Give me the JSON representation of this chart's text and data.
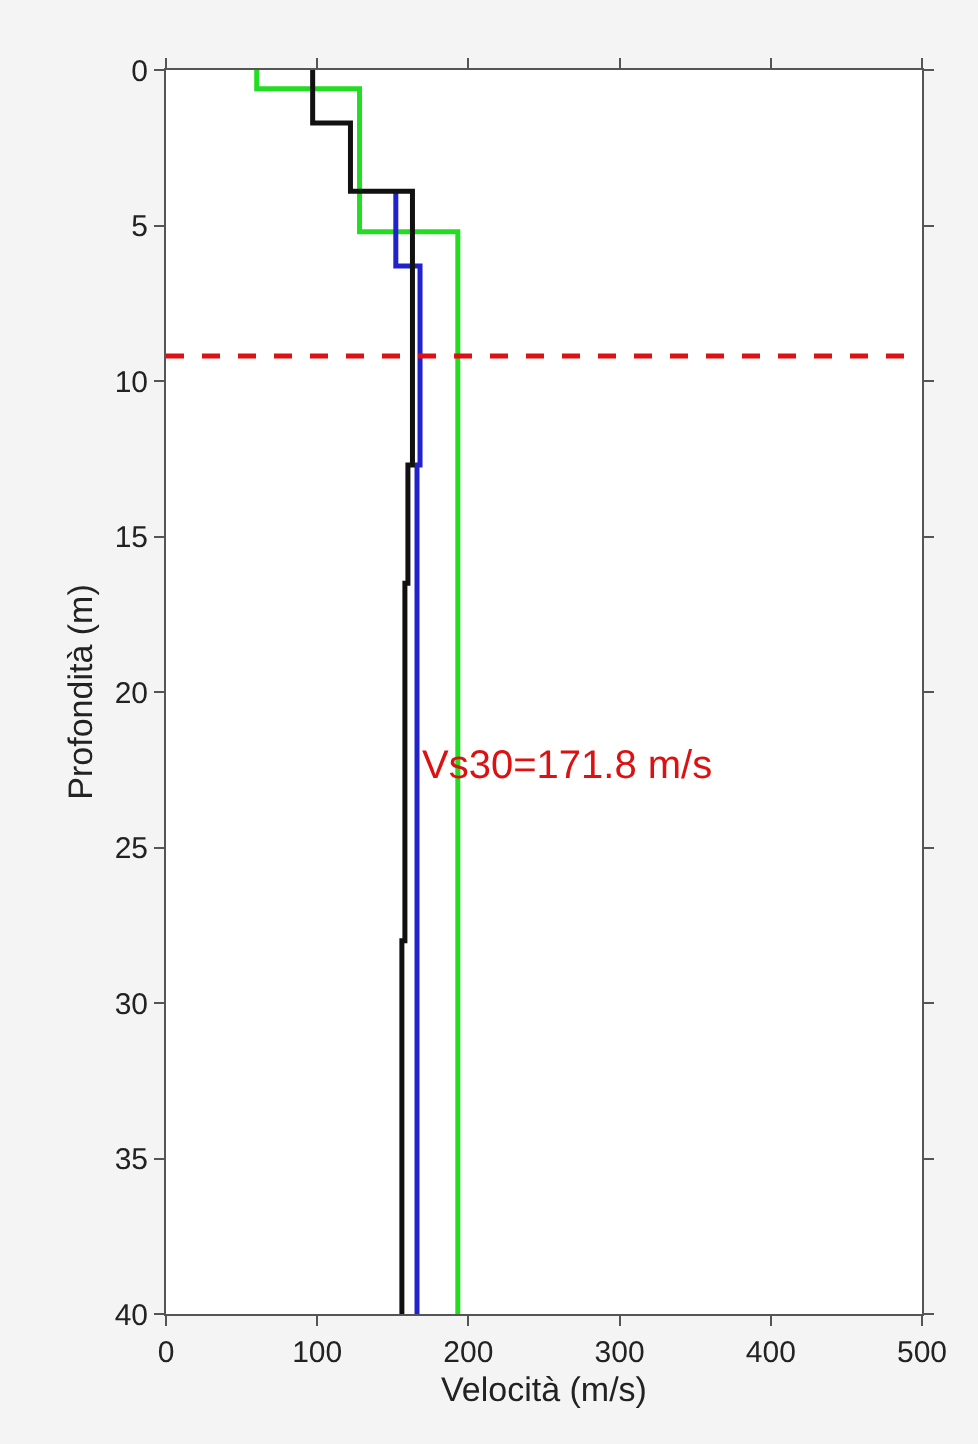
{
  "chart_data": {
    "type": "line",
    "xlabel": "Velocità (m/s)",
    "ylabel": "Profondità (m)",
    "xlim": [
      0,
      500
    ],
    "xticks": [
      0,
      100,
      200,
      300,
      400,
      500
    ],
    "ylim": [
      40,
      0
    ],
    "yticks": [
      0,
      5,
      10,
      15,
      20,
      25,
      30,
      35,
      40
    ],
    "marker": "none",
    "line_style": "solid",
    "series": [
      {
        "color": "#22dd22",
        "x": [
          60,
          60,
          128,
          128,
          193,
          193
        ],
        "values": [
          0,
          0.6,
          0.6,
          5.2,
          5.2,
          40
        ]
      },
      {
        "color": "#2222cc",
        "x": [
          152,
          152,
          168,
          168,
          166,
          166
        ],
        "values": [
          3.9,
          6.3,
          6.3,
          12.7,
          12.7,
          40
        ]
      },
      {
        "color": "#111111",
        "x": [
          97,
          97,
          122,
          122,
          163,
          163,
          160,
          160,
          158,
          158,
          156,
          156
        ],
        "values": [
          0,
          1.7,
          1.7,
          3.9,
          3.9,
          12.7,
          12.7,
          16.5,
          16.5,
          28,
          28,
          40
        ]
      }
    ],
    "ref_lines": [
      {
        "axis": "y",
        "value": 9.2,
        "color": "#dd1111",
        "line_style": "dashed"
      }
    ],
    "annotations": [
      "Vs30=171.8 m/s"
    ]
  }
}
